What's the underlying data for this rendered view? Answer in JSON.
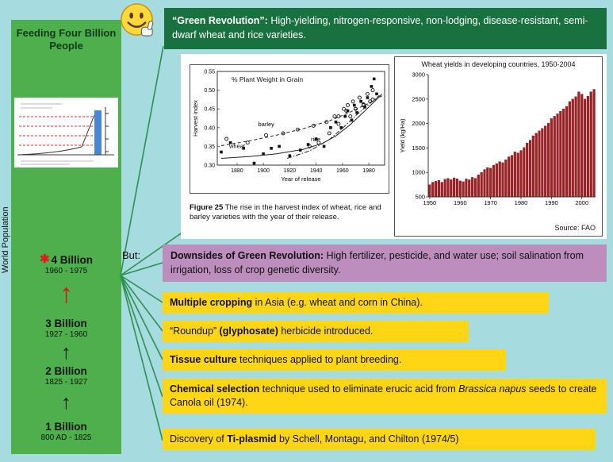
{
  "colors": {
    "background": "#a6dbe0",
    "panel_green": "#4db04d",
    "header_green": "#1a7140",
    "purple": "#bd8ebd",
    "yellow": "#ffd615",
    "connector_green": "#2e8f4f",
    "accent_red": "#cf1717",
    "bar_red": "#a21f24"
  },
  "icons": {
    "asterisk": "✱",
    "up_arrow": "↑"
  },
  "left_panel": {
    "title": "Feeding Four Billion People",
    "side_label": "World Population",
    "milestones": [
      {
        "label": "4 Billion",
        "dates": "1960 - 1975",
        "starred": true
      },
      {
        "label": "3 Billion",
        "dates": "1927 - 1960",
        "starred": false
      },
      {
        "label": "2 Billion",
        "dates": "1825 - 1927",
        "starred": false
      },
      {
        "label": "1 Billion",
        "dates": "800 AD - 1825",
        "starred": false
      }
    ]
  },
  "header": {
    "bold": "“Green Revolution”:",
    "rest": " High-yielding, nitrogen-responsive, non-lodging, disease-resistant, semi-dwarf wheat and rice varieties."
  },
  "but_label": "But:",
  "downsides": {
    "bold": "Downsides of Green Revolution:",
    "rest": " High fertilizer, pesticide, and water use; soil salination from irrigation, loss of crop genetic diversity."
  },
  "notes": [
    {
      "parts": [
        {
          "t": "Multiple cropping",
          "b": true
        },
        {
          "t": " in Asia (e.g. wheat and corn in China)."
        }
      ]
    },
    {
      "parts": [
        {
          "t": "“Roundup” "
        },
        {
          "t": "(glyphosate)",
          "b": true
        },
        {
          "t": " herbicide introduced."
        }
      ]
    },
    {
      "parts": [
        {
          "t": "Tissue culture",
          "b": true
        },
        {
          "t": " techniques applied to plant breeding."
        }
      ]
    },
    {
      "parts": [
        {
          "t": "Chemical selection",
          "b": true
        },
        {
          "t": " technique used to eliminate erucic acid from "
        },
        {
          "t": "Brassica napus",
          "i": true
        },
        {
          "t": " seeds to create Canola oil (1974)."
        }
      ]
    },
    {
      "parts": [
        {
          "t": "Discovery of "
        },
        {
          "t": "Ti-plasmid",
          "b": true
        },
        {
          "t": " by Schell, Montagu, and Chilton (1974/5)"
        }
      ]
    }
  ],
  "chart_data": [
    {
      "type": "scatter",
      "title": "% Plant Weight in Grain",
      "xlabel": "Year of release",
      "ylabel": "Harvest index",
      "xlim": [
        1865,
        1992
      ],
      "ylim": [
        0.3,
        0.55
      ],
      "xticks": [
        1880,
        1900,
        1920,
        1940,
        1960,
        1980
      ],
      "yticks": [
        0.3,
        0.35,
        0.4,
        0.45,
        0.5,
        0.55
      ],
      "caption_bold": "Figure 25",
      "caption_rest": " The rise in the harvest index of wheat, rice and barley varieties with the year of their release.",
      "series": [
        {
          "name": "wheat",
          "marker": "square",
          "line": "solid",
          "trend": [
            [
              1868,
              0.318
            ],
            [
              1890,
              0.323
            ],
            [
              1910,
              0.33
            ],
            [
              1930,
              0.342
            ],
            [
              1945,
              0.358
            ],
            [
              1955,
              0.378
            ],
            [
              1965,
              0.405
            ],
            [
              1975,
              0.438
            ],
            [
              1985,
              0.472
            ],
            [
              1990,
              0.49
            ]
          ],
          "points": [
            [
              1868,
              0.335
            ],
            [
              1875,
              0.36
            ],
            [
              1885,
              0.345
            ],
            [
              1893,
              0.305
            ],
            [
              1900,
              0.33
            ],
            [
              1906,
              0.345
            ],
            [
              1912,
              0.35
            ],
            [
              1920,
              0.325
            ],
            [
              1928,
              0.34
            ],
            [
              1934,
              0.355
            ],
            [
              1940,
              0.37
            ],
            [
              1946,
              0.35
            ],
            [
              1951,
              0.4
            ],
            [
              1955,
              0.415
            ],
            [
              1959,
              0.4
            ],
            [
              1962,
              0.43
            ],
            [
              1964,
              0.445
            ],
            [
              1967,
              0.42
            ],
            [
              1969,
              0.46
            ],
            [
              1971,
              0.44
            ],
            [
              1974,
              0.47
            ],
            [
              1977,
              0.455
            ],
            [
              1979,
              0.48
            ],
            [
              1982,
              0.51
            ],
            [
              1984,
              0.53
            ],
            [
              1986,
              0.49
            ]
          ]
        },
        {
          "name": "rice",
          "marker": "circle",
          "line": "dashdot",
          "trend": [
            [
              1918,
              0.318
            ],
            [
              1935,
              0.338
            ],
            [
              1950,
              0.368
            ],
            [
              1960,
              0.398
            ],
            [
              1970,
              0.432
            ],
            [
              1980,
              0.462
            ],
            [
              1988,
              0.486
            ]
          ],
          "points": [
            [
              1935,
              0.35
            ],
            [
              1942,
              0.36
            ],
            [
              1950,
              0.385
            ],
            [
              1954,
              0.43
            ],
            [
              1957,
              0.41
            ],
            [
              1961,
              0.45
            ],
            [
              1964,
              0.46
            ],
            [
              1966,
              0.43
            ],
            [
              1968,
              0.47
            ],
            [
              1970,
              0.45
            ],
            [
              1973,
              0.48
            ],
            [
              1976,
              0.46
            ],
            [
              1979,
              0.49
            ],
            [
              1981,
              0.47
            ],
            [
              1983,
              0.5
            ]
          ]
        },
        {
          "name": "barley",
          "marker": "circle",
          "line": "dashed",
          "trend": [
            [
              1868,
              0.352
            ],
            [
              1890,
              0.365
            ],
            [
              1910,
              0.38
            ],
            [
              1930,
              0.397
            ],
            [
              1950,
              0.418
            ],
            [
              1965,
              0.44
            ],
            [
              1980,
              0.465
            ],
            [
              1990,
              0.485
            ]
          ],
          "points": [
            [
              1872,
              0.37
            ],
            [
              1888,
              0.36
            ],
            [
              1902,
              0.38
            ],
            [
              1915,
              0.385
            ],
            [
              1926,
              0.395
            ],
            [
              1938,
              0.405
            ],
            [
              1948,
              0.415
            ],
            [
              1957,
              0.43
            ],
            [
              1963,
              0.445
            ],
            [
              1970,
              0.45
            ],
            [
              1976,
              0.462
            ],
            [
              1983,
              0.475
            ]
          ]
        }
      ],
      "annotations": [
        {
          "text": "barley",
          "x": 1896,
          "y": 0.404
        },
        {
          "text": "wheat",
          "x": 1874,
          "y": 0.346
        },
        {
          "text": "rice",
          "x": 1936,
          "y": 0.364
        }
      ]
    },
    {
      "type": "bar",
      "title": "Wheat yields in developing countries, 1950-2004",
      "ylabel": "Yield (kg/Ha)",
      "ylim": [
        500,
        3000
      ],
      "yticks": [
        500,
        1000,
        1500,
        2000,
        2500,
        3000
      ],
      "xticks": [
        1950,
        1960,
        1970,
        1980,
        1990,
        2000
      ],
      "x_start": 1950,
      "bar_color": "#a21f24",
      "source": "Source: FAO",
      "values": [
        750,
        800,
        820,
        840,
        800,
        860,
        880,
        850,
        890,
        870,
        830,
        810,
        870,
        850,
        900,
        880,
        950,
        1000,
        1060,
        1100,
        1090,
        1150,
        1180,
        1220,
        1200,
        1260,
        1320,
        1350,
        1420,
        1400,
        1450,
        1510,
        1600,
        1660,
        1750,
        1800,
        1850,
        1900,
        1950,
        2010,
        2100,
        2150,
        2200,
        2250,
        2300,
        2350,
        2450,
        2500,
        2550,
        2650,
        2600,
        2500,
        2560,
        2650,
        2700
      ]
    }
  ]
}
